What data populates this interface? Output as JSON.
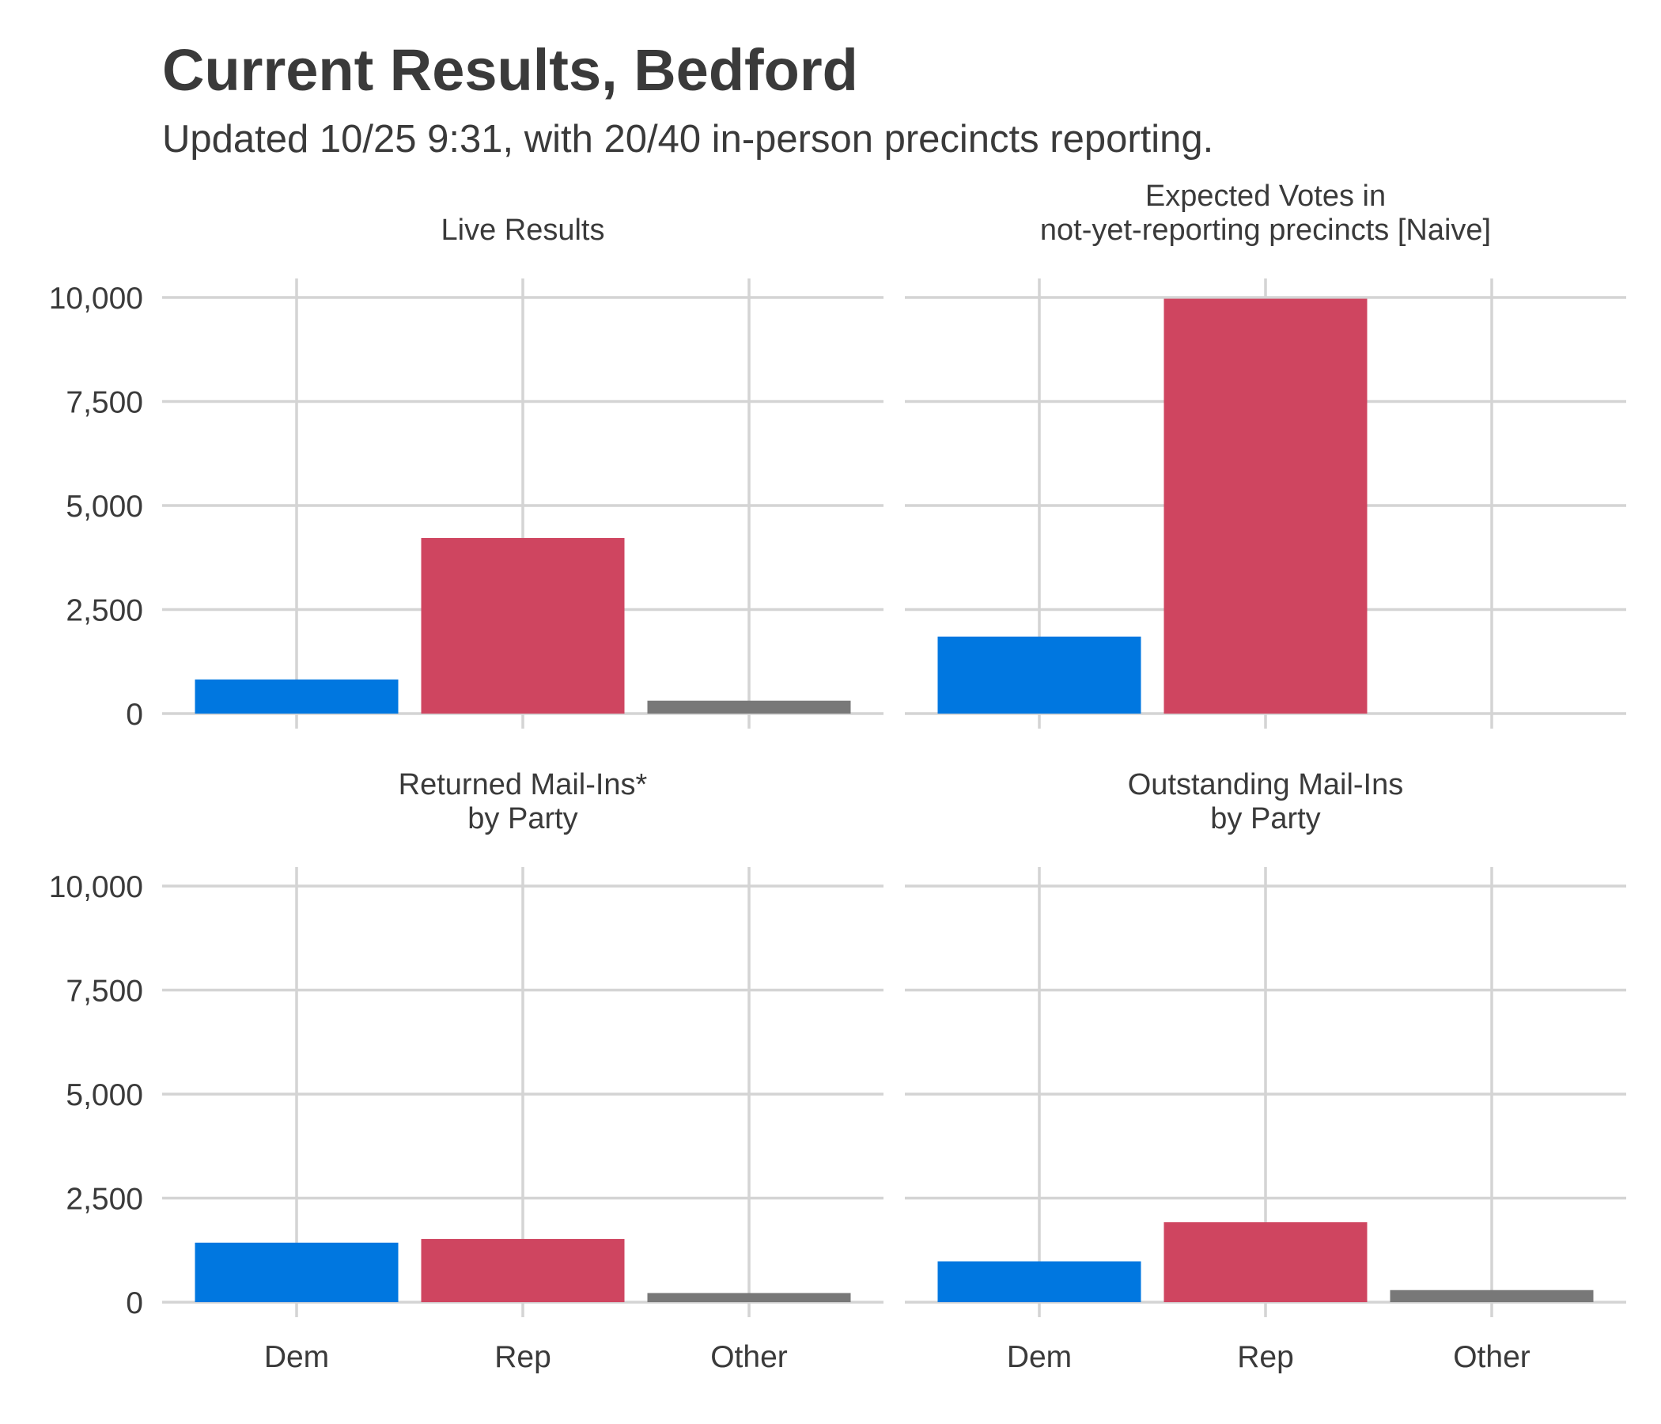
{
  "chart_data": {
    "type": "bar",
    "title": "Current Results, Bedford",
    "subtitle": "Updated 10/25 9:31, with 20/40 in-person precincts reporting.",
    "categories": [
      "Dem",
      "Rep",
      "Other"
    ],
    "ylim": [
      0,
      10000
    ],
    "yticks": [
      0,
      2500,
      5000,
      7500,
      10000
    ],
    "ytick_labels": [
      "0",
      "2,500",
      "5,000",
      "7,500",
      "10,000"
    ],
    "grid": true,
    "colors": {
      "Dem": "#0077e0",
      "Rep": "#cf4560",
      "Other": "#787878"
    },
    "panels": [
      {
        "title": [
          "Live Results"
        ],
        "values": [
          820,
          4220,
          310
        ]
      },
      {
        "title": [
          "Expected Votes in",
          "not-yet-reporting precincts [Naive]"
        ],
        "values": [
          1850,
          9970,
          0
        ]
      },
      {
        "title": [
          "Returned Mail-Ins*",
          "by Party"
        ],
        "values": [
          1430,
          1520,
          220
        ]
      },
      {
        "title": [
          "Outstanding Mail-Ins",
          "by Party"
        ],
        "values": [
          980,
          1920,
          290
        ]
      }
    ]
  }
}
